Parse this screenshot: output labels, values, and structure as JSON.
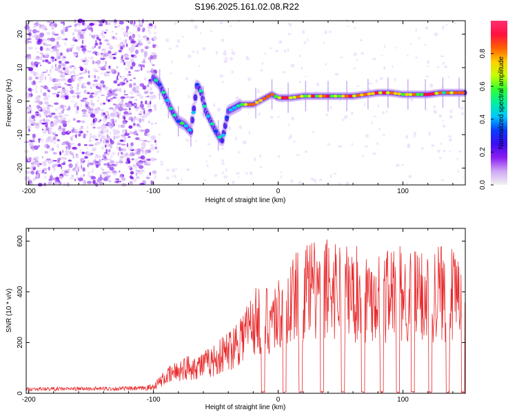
{
  "title": "S196.2025.161.02.08.R22",
  "chart_data": [
    {
      "type": "heatmap",
      "name": "spectrogram",
      "xlabel": "Height of straight line (km)",
      "ylabel": "Frequency (Hz)",
      "xlim": [
        -202,
        150
      ],
      "ylim": [
        -25,
        24
      ],
      "xticks": [
        -200,
        -100,
        0,
        100
      ],
      "yticks": [
        -20,
        -10,
        0,
        10,
        20
      ],
      "colorbar": {
        "label": "Normalized spectral amplitude",
        "range": [
          0,
          1
        ],
        "ticks": [
          "0.0",
          "0.2",
          "0.4",
          "0.6",
          "0.8"
        ],
        "colors": [
          "#f2f2f2",
          "#cfa8f5",
          "#8a1cf0",
          "#3a0df5",
          "#0a3cff",
          "#00c8ff",
          "#00f0a0",
          "#30ff30",
          "#c8ff00",
          "#ffd000",
          "#ff6000",
          "#ff1040",
          "#ff3070"
        ]
      },
      "signal_track": [
        {
          "x": -100,
          "f": 7
        },
        {
          "x": -95,
          "f": 5
        },
        {
          "x": -90,
          "f": 1
        },
        {
          "x": -85,
          "f": -3
        },
        {
          "x": -80,
          "f": -6
        },
        {
          "x": -75,
          "f": -7
        },
        {
          "x": -70,
          "f": -9
        },
        {
          "x": -65,
          "f": 5
        },
        {
          "x": -62,
          "f": 3
        },
        {
          "x": -58,
          "f": -3
        },
        {
          "x": -54,
          "f": -6
        },
        {
          "x": -50,
          "f": -9
        },
        {
          "x": -45,
          "f": -12
        },
        {
          "x": -40,
          "f": -3
        },
        {
          "x": -35,
          "f": -2
        },
        {
          "x": -30,
          "f": -1
        },
        {
          "x": -25,
          "f": -1
        },
        {
          "x": -20,
          "f": -1
        },
        {
          "x": -15,
          "f": 0
        },
        {
          "x": -10,
          "f": 1
        },
        {
          "x": -5,
          "f": 2
        },
        {
          "x": 0,
          "f": 1
        },
        {
          "x": 10,
          "f": 1
        },
        {
          "x": 20,
          "f": 1.5
        },
        {
          "x": 30,
          "f": 1.5
        },
        {
          "x": 40,
          "f": 1.5
        },
        {
          "x": 50,
          "f": 1.5
        },
        {
          "x": 60,
          "f": 1.5
        },
        {
          "x": 70,
          "f": 2
        },
        {
          "x": 80,
          "f": 2.5
        },
        {
          "x": 90,
          "f": 2.5
        },
        {
          "x": 100,
          "f": 2
        },
        {
          "x": 110,
          "f": 2
        },
        {
          "x": 120,
          "f": 2
        },
        {
          "x": 130,
          "f": 2.5
        },
        {
          "x": 140,
          "f": 2.5
        },
        {
          "x": 150,
          "f": 2.5
        }
      ],
      "noise_region": [
        -202,
        -98
      ]
    },
    {
      "type": "line",
      "name": "snr",
      "xlabel": "Height of straight line (km)",
      "ylabel": "SNR (10 * v/v)",
      "xlim": [
        -202,
        150
      ],
      "ylim": [
        0,
        650
      ],
      "xticks": [
        -200,
        -100,
        0,
        100
      ],
      "yticks": [
        0,
        200,
        400,
        600
      ],
      "color": "#e8282a",
      "envelope": [
        {
          "x": -202,
          "y": 20
        },
        {
          "x": -110,
          "y": 25
        },
        {
          "x": -100,
          "y": 40
        },
        {
          "x": -90,
          "y": 90
        },
        {
          "x": -80,
          "y": 130
        },
        {
          "x": -70,
          "y": 150
        },
        {
          "x": -60,
          "y": 160
        },
        {
          "x": -50,
          "y": 190
        },
        {
          "x": -40,
          "y": 240
        },
        {
          "x": -30,
          "y": 320
        },
        {
          "x": -20,
          "y": 400
        },
        {
          "x": -10,
          "y": 420
        },
        {
          "x": 0,
          "y": 440
        },
        {
          "x": 10,
          "y": 520
        },
        {
          "x": 20,
          "y": 560
        },
        {
          "x": 30,
          "y": 580
        },
        {
          "x": 40,
          "y": 600
        },
        {
          "x": 50,
          "y": 590
        },
        {
          "x": 60,
          "y": 560
        },
        {
          "x": 70,
          "y": 550
        },
        {
          "x": 80,
          "y": 560
        },
        {
          "x": 90,
          "y": 560
        },
        {
          "x": 100,
          "y": 550
        },
        {
          "x": 110,
          "y": 540
        },
        {
          "x": 120,
          "y": 560
        },
        {
          "x": 130,
          "y": 580
        },
        {
          "x": 140,
          "y": 540
        },
        {
          "x": 150,
          "y": 460
        }
      ],
      "dropouts": [
        -12,
        5,
        18,
        35,
        52,
        68,
        83,
        96,
        108,
        122,
        136,
        148
      ]
    }
  ]
}
